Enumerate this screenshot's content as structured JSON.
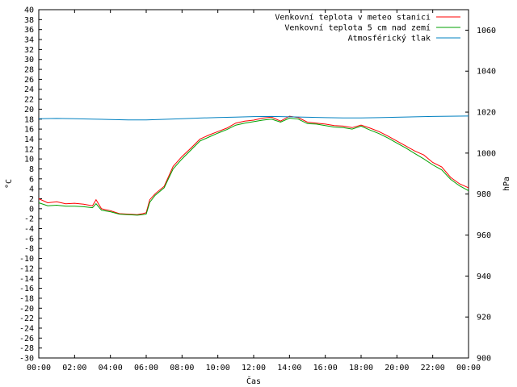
{
  "chart_data": {
    "type": "line",
    "xlabel": "Čas",
    "ylabel": "°C",
    "y2label": "hPa",
    "xlim": [
      0,
      24
    ],
    "ylim": [
      -30,
      40
    ],
    "y2lim": [
      900,
      1070
    ],
    "x_tick_labels": [
      "00:00",
      "02:00",
      "04:00",
      "06:00",
      "08:00",
      "10:00",
      "12:00",
      "14:00",
      "16:00",
      "18:00",
      "20:00",
      "22:00",
      "00:00"
    ],
    "y_ticks": [
      -30,
      -28,
      -26,
      -24,
      -22,
      -20,
      -18,
      -16,
      -14,
      -12,
      -10,
      -8,
      -6,
      -4,
      -2,
      0,
      2,
      4,
      6,
      8,
      10,
      12,
      14,
      16,
      18,
      20,
      22,
      24,
      26,
      28,
      30,
      32,
      34,
      36,
      38,
      40
    ],
    "y2_ticks": [
      900,
      920,
      940,
      960,
      980,
      1000,
      1020,
      1040,
      1060
    ],
    "grid": false,
    "legend_position": "top-right",
    "series": [
      {
        "name": "Venkovní teplota v meteo stanici",
        "axis": "y",
        "color": "#ff0000",
        "x": [
          0,
          0.5,
          1,
          1.5,
          2,
          2.5,
          3,
          3.2,
          3.5,
          4,
          4.5,
          5,
          5.5,
          5.8,
          6,
          6.2,
          6.5,
          7,
          7.5,
          8,
          8.5,
          9,
          9.5,
          10,
          10.5,
          11,
          11.5,
          12,
          12.5,
          13,
          13.5,
          14,
          14.5,
          15,
          15.5,
          16,
          16.5,
          17,
          17.5,
          18,
          18.5,
          19,
          19.5,
          20,
          20.5,
          21,
          21.5,
          22,
          22.5,
          23,
          23.5,
          24
        ],
        "y": [
          2,
          1.2,
          1.4,
          1,
          1.1,
          0.9,
          0.6,
          1.8,
          0,
          -0.4,
          -1,
          -1.1,
          -1.2,
          -1,
          -0.8,
          1.8,
          3,
          4.5,
          8.5,
          10.5,
          12.2,
          14,
          14.8,
          15.5,
          16.2,
          17.2,
          17.6,
          17.8,
          18.2,
          18.4,
          17.6,
          18.6,
          18.3,
          17.4,
          17.2,
          17,
          16.7,
          16.6,
          16.3,
          16.8,
          16.2,
          15.5,
          14.6,
          13.6,
          12.6,
          11.6,
          10.8,
          9.3,
          8.4,
          6.3,
          5,
          4.2
        ]
      },
      {
        "name": "Venkovní teplota 5 cm nad zemí",
        "axis": "y",
        "color": "#00a000",
        "x": [
          0,
          0.5,
          1,
          1.5,
          2,
          2.5,
          3,
          3.2,
          3.5,
          4,
          4.5,
          5,
          5.5,
          5.8,
          6,
          6.2,
          6.5,
          7,
          7.5,
          8,
          8.5,
          9,
          9.5,
          10,
          10.5,
          11,
          11.5,
          12,
          12.5,
          13,
          13.5,
          14,
          14.5,
          15,
          15.5,
          16,
          16.5,
          17,
          17.5,
          18,
          18.5,
          19,
          19.5,
          20,
          20.5,
          21,
          21.5,
          22,
          22.5,
          23,
          23.5,
          24
        ],
        "y": [
          1.2,
          0.6,
          0.7,
          0.5,
          0.5,
          0.4,
          0.2,
          1,
          -0.3,
          -0.6,
          -1.1,
          -1.2,
          -1.3,
          -1.2,
          -1.1,
          1.3,
          2.7,
          4.2,
          8,
          10,
          11.8,
          13.6,
          14.4,
          15.2,
          15.9,
          16.8,
          17.2,
          17.5,
          17.8,
          18,
          17.4,
          18.2,
          18,
          17.1,
          17,
          16.7,
          16.4,
          16.3,
          16,
          16.6,
          15.8,
          15.1,
          14.2,
          13.2,
          12.2,
          11.1,
          10,
          8.8,
          7.8,
          5.9,
          4.6,
          3.6
        ]
      },
      {
        "name": "Atmosférický tlak",
        "axis": "y2",
        "color": "#0080c0",
        "x": [
          0,
          1,
          2,
          3,
          4,
          5,
          6,
          7,
          8,
          9,
          10,
          11,
          12,
          13,
          14,
          15,
          16,
          17,
          18,
          19,
          20,
          21,
          22,
          23,
          24
        ],
        "y": [
          1016.8,
          1016.9,
          1016.8,
          1016.6,
          1016.4,
          1016.2,
          1016.2,
          1016.5,
          1016.8,
          1017.1,
          1017.4,
          1017.6,
          1017.8,
          1017.9,
          1017.7,
          1017.5,
          1017.3,
          1017.2,
          1017.2,
          1017.3,
          1017.5,
          1017.7,
          1017.9,
          1018,
          1018.1
        ]
      }
    ]
  }
}
